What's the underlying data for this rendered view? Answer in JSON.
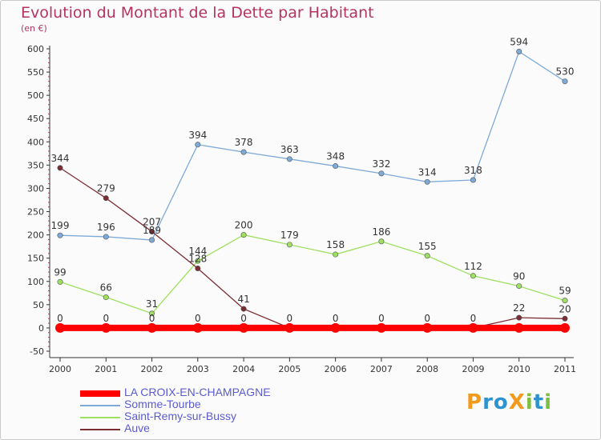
{
  "title": "Evolution du Montant de la Dette par Habitant",
  "unit_label": "(en €)",
  "logo": {
    "letters": [
      {
        "ch": "P",
        "color": "#f29a1b"
      },
      {
        "ch": "r",
        "color": "#2d93cf"
      },
      {
        "ch": "o",
        "color": "#2d93cf"
      },
      {
        "ch": "X",
        "color": "#f29a1b"
      },
      {
        "ch": "i",
        "color": "#7fbf3f"
      },
      {
        "ch": "t",
        "color": "#2d93cf"
      },
      {
        "ch": "i",
        "color": "#7fbf3f"
      }
    ]
  },
  "chart_data": {
    "type": "line",
    "x": [
      "2000",
      "2001",
      "2002",
      "2003",
      "2004",
      "2005",
      "2006",
      "2007",
      "2008",
      "2009",
      "2010",
      "2011"
    ],
    "ylim": [
      -50,
      600
    ],
    "yticks": [
      "-50",
      "0",
      "50",
      "100",
      "150",
      "200",
      "250",
      "300",
      "350",
      "400",
      "450",
      "500",
      "550",
      "600"
    ],
    "grid": false,
    "legend_position": "bottom",
    "series": [
      {
        "name": "LA CROIX-EN-CHAMPAGNE",
        "color": "#ff0000",
        "values": [
          0,
          0,
          0,
          0,
          0,
          0,
          0,
          0,
          0,
          0,
          0,
          0
        ],
        "labels": [
          "0",
          "0",
          "0",
          "0",
          "0",
          "0",
          "0",
          "0",
          "0",
          "0",
          "",
          ""
        ]
      },
      {
        "name": "Somme-Tourbe",
        "color": "#7eaad8",
        "values": [
          199,
          196,
          189,
          394,
          378,
          363,
          348,
          332,
          314,
          318,
          594,
          530
        ],
        "labels": [
          "199",
          "196",
          "189",
          "394",
          "378",
          "363",
          "348",
          "332",
          "314",
          "318",
          "594",
          "530"
        ]
      },
      {
        "name": "Saint-Remy-sur-Bussy",
        "color": "#9ee060",
        "values": [
          99,
          66,
          31,
          144,
          200,
          179,
          158,
          186,
          155,
          112,
          90,
          59
        ],
        "labels": [
          "99",
          "66",
          "31",
          "144",
          "200",
          "179",
          "158",
          "186",
          "155",
          "112",
          "90",
          "59"
        ]
      },
      {
        "name": "Auve",
        "color": "#7a2d33",
        "values": [
          344,
          279,
          207,
          128,
          41,
          0,
          0,
          0,
          0,
          0,
          22,
          20
        ],
        "labels": [
          "344",
          "279",
          "207",
          "128",
          "41",
          "",
          "",
          "",
          "",
          "",
          "22",
          "20"
        ]
      }
    ]
  }
}
